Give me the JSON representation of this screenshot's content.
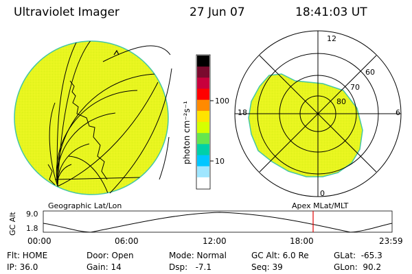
{
  "header": {
    "instrument": "Ultraviolet Imager",
    "date": "27 Jun 07",
    "time": "18:41:03 UT"
  },
  "colorbar": {
    "unit_label": "photon cm⁻²s⁻¹",
    "ticks": [
      "100",
      "10"
    ],
    "colors": [
      "#000000",
      "#7a0a2e",
      "#c8003c",
      "#ff0000",
      "#ff8a00",
      "#ffe400",
      "#d6ff00",
      "#66e64e",
      "#00d0a8",
      "#00c6ff",
      "#9fe6ff",
      "#ffffff"
    ]
  },
  "geographic_panel": {
    "label": "Geographic Lat/Lon",
    "fill_color": "#e6f51e"
  },
  "polar_panel": {
    "label": "Apex MLat/MLT",
    "mlt_labels": [
      "12",
      "18",
      "6",
      "0"
    ],
    "mlat_labels": [
      "60",
      "70",
      "80"
    ],
    "fill_color": "#e6f51e"
  },
  "altitude_plot": {
    "axis_title": "GC Alt",
    "y_ticks": [
      "9.0",
      "1.8"
    ],
    "x_ticks": [
      "00:00",
      "06:00",
      "12:00",
      "18:00",
      "23:59"
    ],
    "marker_color": "#e00000"
  },
  "status": {
    "flt": "Flt: HOME",
    "ip": "IP: 36.0",
    "door": "Door: Open",
    "gain": "Gain: 14",
    "mode": "Mode: Normal",
    "dsp": "Dsp:   -7.1",
    "gc_alt": "GC Alt: 6.0 Re",
    "seq": "Seq: 39",
    "glat": "GLat:  -65.3",
    "glon": "GLon:  90.2"
  }
}
